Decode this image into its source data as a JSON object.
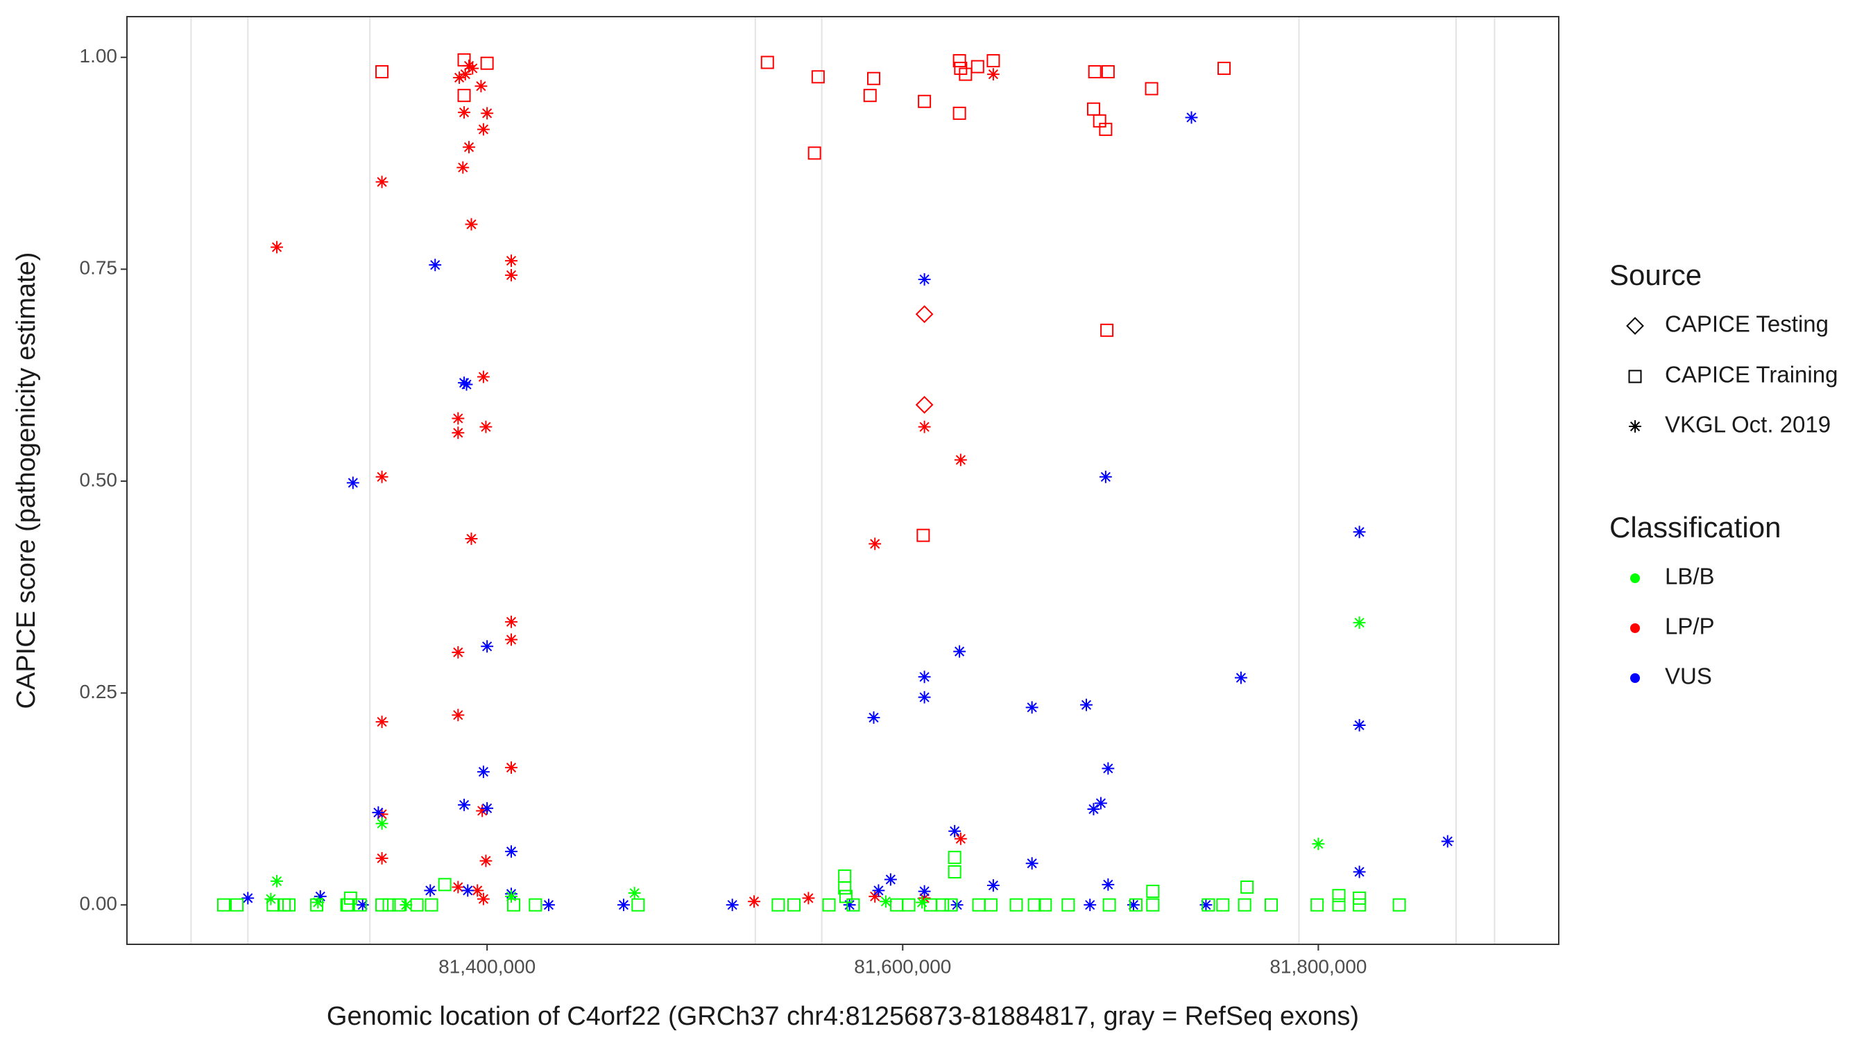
{
  "chart_data": {
    "type": "scatter",
    "x_label": "Genomic location of C4orf22 (GRCh37 chr4:81256873-81884817, gray = RefSeq exons)",
    "y_label": "CAPICE score (pathogenicity estimate)",
    "xlim": [
      81226700,
      81915700
    ],
    "ylim": [
      -0.0465,
      1.048
    ],
    "xticks": [
      {
        "value": 81400000,
        "label": "81,400,000"
      },
      {
        "value": 81600000,
        "label": "81,600,000"
      },
      {
        "value": 81800000,
        "label": "81,800,000"
      }
    ],
    "yticks": [
      {
        "value": 0,
        "label": "0.00"
      },
      {
        "value": 0.25,
        "label": "0.25"
      },
      {
        "value": 0.5,
        "label": "0.50"
      },
      {
        "value": 0.75,
        "label": "0.75"
      },
      {
        "value": 1,
        "label": "1.00"
      }
    ],
    "exons": [
      81257550,
      81284880,
      81343600,
      81529070,
      81561050,
      81790700,
      81866280,
      81884820
    ],
    "exon_color": "#e3e3e3",
    "legend": {
      "source": {
        "title": "Source",
        "items": [
          {
            "name": "CAPICE Testing",
            "shape": "diamond"
          },
          {
            "name": "CAPICE Training",
            "shape": "square"
          },
          {
            "name": "VKGL Oct. 2019",
            "shape": "asterisk"
          }
        ]
      },
      "classification": {
        "title": "Classification",
        "items": [
          {
            "name": "LB/B",
            "color": "#00ff00"
          },
          {
            "name": "LP/P",
            "color": "#ff0000"
          },
          {
            "name": "VUS",
            "color": "#0000ff"
          }
        ]
      }
    },
    "series": [
      {
        "source": 1,
        "classification": 1,
        "x": [
          81349400,
          81388950,
          81388950,
          81400000,
          81534900,
          81559300,
          81586050,
          81584300,
          81557560,
          81610460,
          81627320,
          81627900,
          81630230,
          81627320,
          81636050,
          81643600,
          81692440,
          81698840,
          81691860,
          81694770,
          81697670,
          81719770,
          81754650,
          81698260,
          81609880
        ],
        "y": [
          0.983,
          0.997,
          0.955,
          0.993,
          0.994,
          0.977,
          0.975,
          0.955,
          0.887,
          0.948,
          0.996,
          0.987,
          0.98,
          0.934,
          0.989,
          0.996,
          0.983,
          0.983,
          0.939,
          0.925,
          0.915,
          0.963,
          0.987,
          0.678,
          0.436
        ]
      },
      {
        "source": 0,
        "classification": 1,
        "x": [
          81610460,
          81610460
        ],
        "y": [
          0.697,
          0.59
        ]
      },
      {
        "source": 2,
        "classification": 1,
        "x": [
          81298830,
          81349400,
          81386630,
          81389530,
          81391280,
          81393020,
          81397090,
          81388950,
          81391280,
          81398250,
          81400000,
          81388370,
          81392440,
          81411630,
          81411630,
          81398250,
          81386040,
          81386040,
          81399420,
          81349400,
          81392440,
          81411630,
          81411630,
          81386040,
          81349400,
          81386040,
          81411630,
          81349400,
          81397670,
          81349400,
          81399420,
          81386040,
          81395350,
          81398250,
          81528490,
          81554650,
          81586630,
          81610460,
          81627900,
          81586630,
          81627900,
          81643600,
          81610460
        ],
        "y": [
          0.776,
          0.853,
          0.976,
          0.98,
          0.99,
          0.987,
          0.966,
          0.935,
          0.894,
          0.915,
          0.934,
          0.87,
          0.803,
          0.76,
          0.743,
          0.623,
          0.574,
          0.557,
          0.564,
          0.505,
          0.432,
          0.334,
          0.313,
          0.298,
          0.216,
          0.224,
          0.162,
          0.107,
          0.111,
          0.055,
          0.052,
          0.021,
          0.017,
          0.007,
          0.004,
          0.008,
          0.01,
          0.564,
          0.525,
          0.426,
          0.078,
          0.98,
          0.008
        ]
      },
      {
        "source": 2,
        "classification": 2,
        "x": [
          81375000,
          81388950,
          81390110,
          81335460,
          81400000,
          81347670,
          81388950,
          81400000,
          81398250,
          81411630,
          81284880,
          81319760,
          81340110,
          81372670,
          81390690,
          81411630,
          81429650,
          81465700,
          81518020,
          81574420,
          81588370,
          81594190,
          81610460,
          81586050,
          81610460,
          81610460,
          81627320,
          81625000,
          81610460,
          81643600,
          81626160,
          81662210,
          81662210,
          81688370,
          81691860,
          81695350,
          81698840,
          81697670,
          81698840,
          81738950,
          81762790,
          81819770,
          81819770,
          81819770,
          81862210,
          81711050,
          81745930,
          81690120
        ],
        "y": [
          0.755,
          0.616,
          0.614,
          0.498,
          0.305,
          0.109,
          0.118,
          0.114,
          0.157,
          0.063,
          0.008,
          0.01,
          0,
          0.017,
          0.017,
          0.013,
          0,
          0,
          0,
          0,
          0.017,
          0.03,
          0.738,
          0.221,
          0.269,
          0.245,
          0.299,
          0.087,
          0.016,
          0.023,
          0,
          0.233,
          0.049,
          0.236,
          0.113,
          0.12,
          0.161,
          0.505,
          0.024,
          0.929,
          0.268,
          0.44,
          0.212,
          0.039,
          0.075,
          0,
          0,
          0
        ]
      },
      {
        "source": 2,
        "classification": 0,
        "x": [
          81298830,
          81349400,
          81470930,
          81800000,
          81819770,
          81295930,
          81318600,
          81361040,
          81411630,
          81591860,
          81609300
        ],
        "y": [
          0.028,
          0.096,
          0.014,
          0.072,
          0.333,
          0.007,
          0.003,
          0,
          0.01,
          0.004,
          0.003
        ]
      },
      {
        "source": 1,
        "classification": 0,
        "x": [
          81273250,
          81279650,
          81297090,
          81302320,
          81304650,
          81318020,
          81332560,
          81338950,
          81349400,
          81352900,
          81357560,
          81366280,
          81373250,
          81412790,
          81423250,
          81472670,
          81540120,
          81547670,
          81564530,
          81576160,
          81597090,
          81602910,
          81613370,
          81619190,
          81623260,
          81636630,
          81642440,
          81654650,
          81663370,
          81668600,
          81679650,
          81699420,
          81712210,
          81720350,
          81747090,
          81754070,
          81764540,
          81777330,
          81799420,
          81809880,
          81819770,
          81838950,
          81572090,
          81572090,
          81572670,
          81625000,
          81625000,
          81765700,
          81720350,
          81809880,
          81819770,
          81379650,
          81334300,
          81333140
        ],
        "y": [
          0,
          0,
          0,
          0,
          0,
          0,
          0,
          0,
          0,
          0,
          0,
          0,
          0,
          0,
          0,
          0,
          0,
          0,
          0,
          0,
          0,
          0,
          0,
          0,
          0,
          0,
          0,
          0,
          0,
          0,
          0,
          0,
          0,
          0,
          0,
          0,
          0,
          0,
          0,
          0,
          0,
          0,
          0.034,
          0.02,
          0.01,
          0.056,
          0.039,
          0.021,
          0.016,
          0.011,
          0.008,
          0.024,
          0.008,
          0
        ]
      }
    ]
  }
}
